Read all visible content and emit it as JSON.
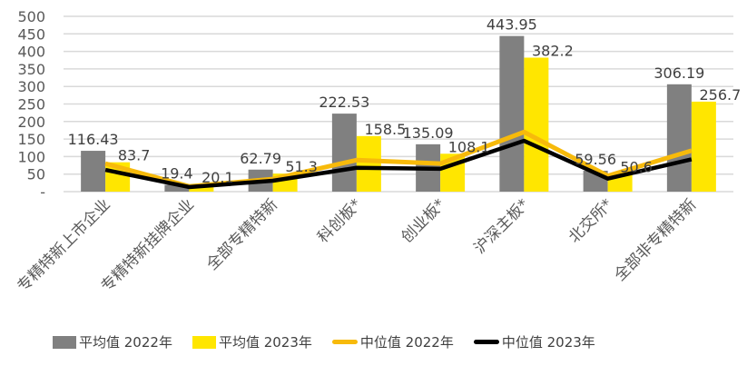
{
  "chart_data": {
    "type": "bar",
    "title": "",
    "xlabel": "",
    "ylabel": "",
    "ylim": [
      0,
      500
    ],
    "yticks": [
      "-",
      "50",
      "100",
      "150",
      "200",
      "250",
      "300",
      "350",
      "400",
      "450",
      "500"
    ],
    "grid": true,
    "legend_position": "bottom",
    "categories": [
      "专精特新上市企业",
      "专精特新挂牌企业",
      "全部专精特新",
      "科创板*",
      "创业板*",
      "沪深主板*",
      "北交所*",
      "全部非专精特新"
    ],
    "series": [
      {
        "name": "平均值 2022年",
        "type": "bar",
        "color": "#808080",
        "values": [
          116.43,
          19.4,
          62.79,
          222.53,
          135.09,
          443.95,
          59.56,
          306.19
        ],
        "labels": [
          "116.43",
          "19.4",
          "62.79",
          "222.53",
          "135.09",
          "443.95",
          "59.56",
          "306.19"
        ]
      },
      {
        "name": "平均值 2023年",
        "type": "bar",
        "color": "#FFE600",
        "values": [
          83.7,
          20.1,
          51.3,
          158.5,
          108.1,
          382.2,
          50.6,
          256.7
        ],
        "labels": [
          "83.7",
          "20.1",
          "51.3",
          "158.5",
          "108.1",
          "382.2",
          "50.6",
          "256.7"
        ]
      },
      {
        "name": "中位值 2022年",
        "type": "line",
        "color": "#F7BA0B",
        "values": [
          80,
          15,
          36,
          90,
          80,
          170,
          45,
          117
        ]
      },
      {
        "name": "中位值 2023年",
        "type": "line",
        "color": "#000000",
        "values": [
          62,
          13,
          31,
          68,
          65,
          145,
          37,
          92
        ]
      }
    ]
  },
  "legend": {
    "items": [
      {
        "label": "平均值 2022年",
        "kind": "bar",
        "color": "#808080"
      },
      {
        "label": "平均值 2023年",
        "kind": "bar",
        "color": "#FFE600"
      },
      {
        "label": "中位值 2022年",
        "kind": "line",
        "color": "#F7BA0B"
      },
      {
        "label": "中位值 2023年",
        "kind": "line",
        "color": "#000000"
      }
    ]
  }
}
